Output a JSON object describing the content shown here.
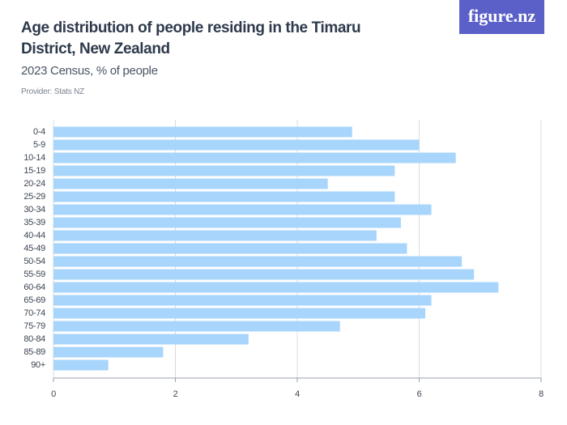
{
  "chart_data": {
    "type": "bar",
    "orientation": "horizontal",
    "title": "Age distribution of people residing in the Timaru District, New Zealand",
    "subtitle": "2023 Census, % of people",
    "source": "Provider: Stats NZ",
    "logo": "figure.nz",
    "categories": [
      "0-4",
      "5-9",
      "10-14",
      "15-19",
      "20-24",
      "25-29",
      "30-34",
      "35-39",
      "40-44",
      "45-49",
      "50-54",
      "55-59",
      "60-64",
      "65-69",
      "70-74",
      "75-79",
      "80-84",
      "85-89",
      "90+"
    ],
    "values": [
      4.9,
      6.0,
      6.6,
      5.6,
      4.5,
      5.6,
      6.2,
      5.7,
      5.3,
      5.8,
      6.7,
      6.9,
      7.3,
      6.2,
      6.1,
      4.7,
      3.2,
      1.8,
      0.9
    ],
    "color": "#a8d5fb",
    "xlim": [
      0,
      8
    ],
    "xticks": [
      0,
      2,
      4,
      6,
      8
    ],
    "grid": true
  }
}
